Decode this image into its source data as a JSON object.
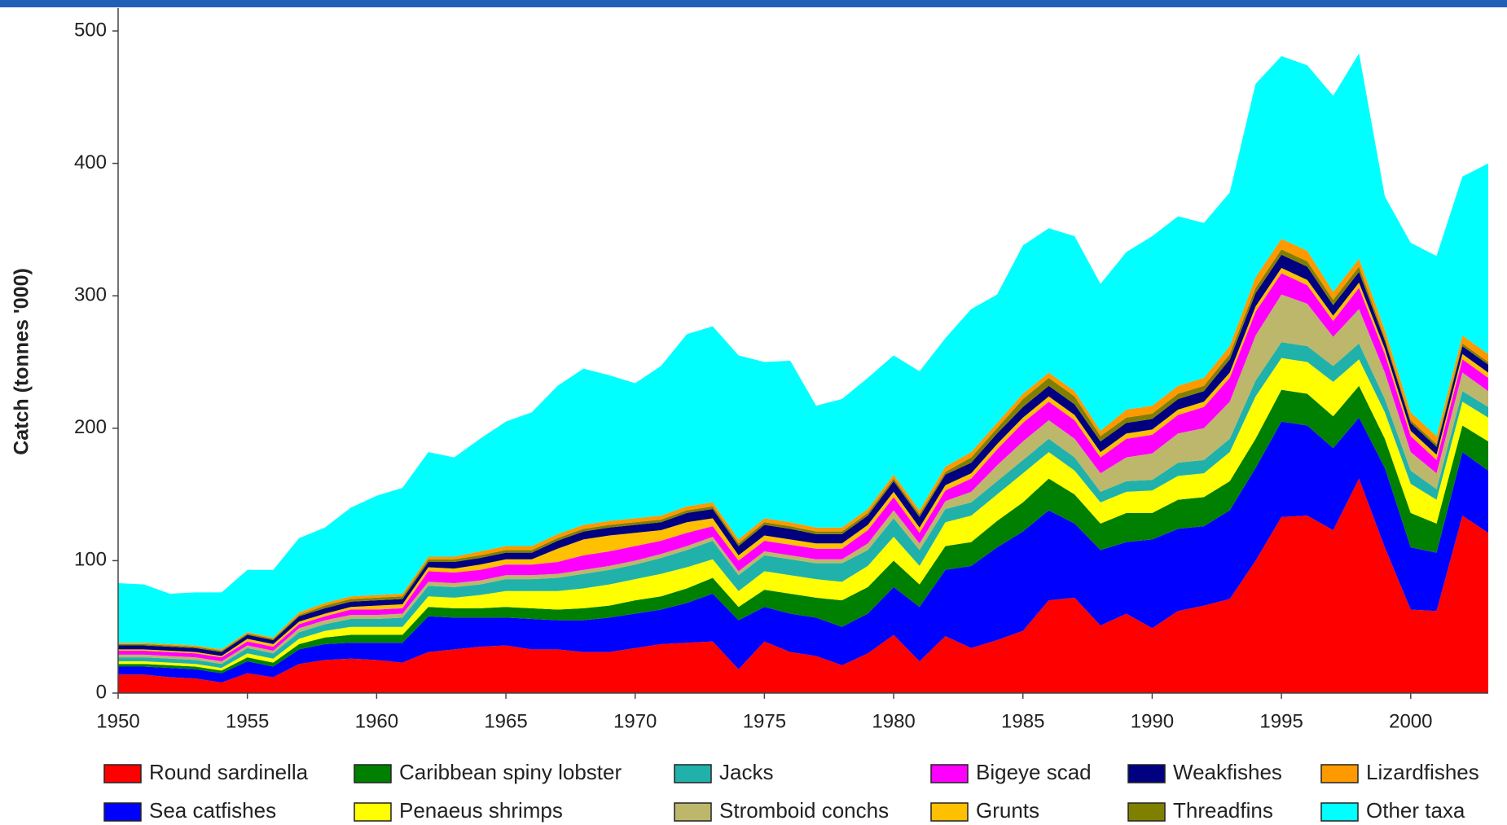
{
  "chart_data": {
    "type": "stacked-area",
    "y_label": "Catch (tonnes '000)",
    "x": [
      1950,
      1951,
      1952,
      1953,
      1954,
      1955,
      1956,
      1957,
      1958,
      1959,
      1960,
      1961,
      1962,
      1963,
      1964,
      1965,
      1966,
      1967,
      1968,
      1969,
      1970,
      1971,
      1972,
      1973,
      1974,
      1975,
      1976,
      1977,
      1978,
      1979,
      1980,
      1981,
      1982,
      1983,
      1984,
      1985,
      1986,
      1987,
      1988,
      1989,
      1990,
      1991,
      1992,
      1993,
      1994,
      1995,
      1996,
      1997,
      1998,
      1999,
      2000,
      2001,
      2002,
      2003
    ],
    "xlim": [
      1950,
      2003
    ],
    "xticks": [
      1950,
      1955,
      1960,
      1965,
      1970,
      1975,
      1980,
      1985,
      1990,
      1995,
      2000
    ],
    "ylim": [
      0,
      500
    ],
    "yticks": [
      0,
      100,
      200,
      300,
      400,
      500
    ],
    "series": [
      {
        "name": "Round sardinella",
        "color": "#ff0000",
        "values": [
          14,
          14,
          12,
          11,
          8,
          15,
          12,
          22,
          25,
          26,
          25,
          23,
          31,
          33,
          35,
          36,
          33,
          33,
          31,
          31,
          34,
          37,
          38,
          39,
          18,
          39,
          31,
          28,
          21,
          30,
          44,
          24,
          43,
          34,
          40,
          47,
          70,
          72,
          51,
          60,
          49,
          62,
          66,
          71,
          100,
          133,
          134,
          123,
          162,
          110,
          63,
          62,
          134,
          121
        ]
      },
      {
        "name": "Sea catfishes",
        "color": "#0000ff",
        "values": [
          6,
          6,
          7,
          7,
          7,
          9,
          8,
          11,
          12,
          12,
          13,
          15,
          27,
          24,
          22,
          21,
          23,
          22,
          24,
          26,
          26,
          26,
          30,
          36,
          37,
          26,
          29,
          29,
          29,
          30,
          36,
          41,
          50,
          62,
          70,
          75,
          68,
          56,
          57,
          54,
          67,
          62,
          60,
          67,
          70,
          72,
          68,
          62,
          46,
          60,
          47,
          44,
          48,
          47
        ]
      },
      {
        "name": "Caribbean spiny lobster",
        "color": "#008000",
        "values": [
          2,
          2,
          2,
          2,
          2,
          3,
          3,
          4,
          5,
          6,
          6,
          6,
          7,
          7,
          7,
          8,
          8,
          8,
          9,
          9,
          10,
          10,
          11,
          12,
          10,
          13,
          15,
          15,
          20,
          20,
          20,
          17,
          18,
          18,
          20,
          22,
          24,
          22,
          20,
          22,
          20,
          22,
          22,
          22,
          22,
          24,
          24,
          24,
          24,
          22,
          26,
          22,
          20,
          22
        ]
      },
      {
        "name": "Penaeus shrimps",
        "color": "#ffff00",
        "values": [
          2,
          2,
          2,
          2,
          2,
          3,
          3,
          4,
          5,
          6,
          6,
          6,
          8,
          8,
          10,
          12,
          13,
          14,
          15,
          16,
          16,
          17,
          16,
          14,
          12,
          14,
          14,
          14,
          14,
          16,
          18,
          14,
          18,
          20,
          20,
          22,
          20,
          18,
          16,
          16,
          17,
          18,
          18,
          22,
          32,
          24,
          24,
          26,
          20,
          20,
          22,
          18,
          18,
          18
        ]
      },
      {
        "name": "Jacks",
        "color": "#20b2aa",
        "values": [
          3,
          3,
          3,
          3,
          3,
          4,
          4,
          5,
          5,
          6,
          6,
          7,
          8,
          8,
          8,
          9,
          9,
          10,
          11,
          11,
          11,
          12,
          13,
          14,
          12,
          12,
          12,
          12,
          14,
          12,
          14,
          12,
          10,
          10,
          10,
          10,
          10,
          10,
          8,
          8,
          8,
          10,
          10,
          10,
          12,
          12,
          12,
          12,
          12,
          10,
          10,
          8,
          8,
          8
        ]
      },
      {
        "name": "Stromboid conchs",
        "color": "#bdb76b",
        "values": [
          2,
          2,
          2,
          2,
          2,
          2,
          2,
          3,
          3,
          3,
          3,
          3,
          3,
          3,
          3,
          3,
          3,
          3,
          3,
          3,
          3,
          3,
          3,
          3,
          3,
          3,
          3,
          3,
          3,
          5,
          6,
          5,
          6,
          8,
          12,
          14,
          14,
          14,
          14,
          18,
          20,
          22,
          24,
          28,
          34,
          36,
          32,
          22,
          26,
          20,
          14,
          12,
          14,
          12
        ]
      },
      {
        "name": "Bigeye scad",
        "color": "#ff00ff",
        "values": [
          3,
          3,
          3,
          3,
          3,
          3,
          3,
          3,
          3,
          4,
          4,
          4,
          8,
          8,
          8,
          8,
          8,
          9,
          11,
          11,
          11,
          10,
          10,
          8,
          8,
          8,
          8,
          8,
          8,
          10,
          10,
          8,
          8,
          10,
          12,
          14,
          14,
          14,
          12,
          14,
          14,
          14,
          16,
          18,
          18,
          16,
          14,
          12,
          16,
          14,
          12,
          10,
          10,
          10
        ]
      },
      {
        "name": "Grunts",
        "color": "#ffc000",
        "values": [
          1,
          1,
          1,
          1,
          1,
          2,
          2,
          2,
          2,
          2,
          3,
          3,
          3,
          3,
          4,
          4,
          4,
          10,
          12,
          12,
          10,
          8,
          8,
          6,
          4,
          4,
          4,
          4,
          4,
          4,
          4,
          4,
          4,
          4,
          4,
          4,
          4,
          4,
          4,
          4,
          4,
          4,
          4,
          4,
          4,
          4,
          4,
          4,
          4,
          4,
          4,
          4,
          4,
          4
        ]
      },
      {
        "name": "Weakfishes",
        "color": "#000080",
        "values": [
          3,
          3,
          3,
          3,
          3,
          3,
          3,
          4,
          4,
          4,
          4,
          4,
          4,
          5,
          5,
          5,
          5,
          6,
          6,
          6,
          6,
          6,
          7,
          7,
          7,
          8,
          8,
          7,
          7,
          7,
          8,
          8,
          8,
          8,
          8,
          8,
          8,
          8,
          8,
          8,
          8,
          8,
          8,
          10,
          10,
          10,
          10,
          8,
          8,
          6,
          6,
          6,
          6,
          6
        ]
      },
      {
        "name": "Threadfins",
        "color": "#808000",
        "values": [
          1,
          1,
          1,
          1,
          1,
          1,
          1,
          1,
          2,
          2,
          2,
          2,
          2,
          2,
          2,
          2,
          2,
          2,
          2,
          2,
          2,
          2,
          2,
          2,
          2,
          2,
          2,
          2,
          2,
          2,
          2,
          2,
          2,
          4,
          4,
          6,
          6,
          6,
          4,
          4,
          4,
          4,
          4,
          4,
          4,
          4,
          4,
          4,
          4,
          2,
          2,
          2,
          2,
          2
        ]
      },
      {
        "name": "Lizardfishes",
        "color": "#ff9900",
        "values": [
          1,
          1,
          1,
          1,
          1,
          1,
          1,
          2,
          2,
          2,
          2,
          2,
          2,
          2,
          3,
          3,
          3,
          3,
          3,
          3,
          3,
          3,
          3,
          3,
          3,
          3,
          3,
          3,
          3,
          3,
          3,
          3,
          4,
          4,
          4,
          4,
          4,
          4,
          4,
          6,
          6,
          6,
          6,
          6,
          8,
          8,
          8,
          6,
          6,
          6,
          6,
          6,
          6,
          6
        ]
      },
      {
        "name": "Other taxa",
        "color": "#00ffff",
        "values": [
          45,
          44,
          38,
          40,
          43,
          47,
          51,
          56,
          57,
          67,
          75,
          80,
          79,
          75,
          85,
          94,
          101,
          112,
          118,
          110,
          102,
          113,
          130,
          133,
          139,
          118,
          122,
          92,
          97,
          99,
          90,
          105,
          97,
          108,
          97,
          112,
          109,
          117,
          111,
          119,
          128,
          128,
          117,
          116,
          146,
          138,
          140,
          148,
          155,
          101,
          128,
          136,
          120,
          144
        ]
      }
    ]
  }
}
